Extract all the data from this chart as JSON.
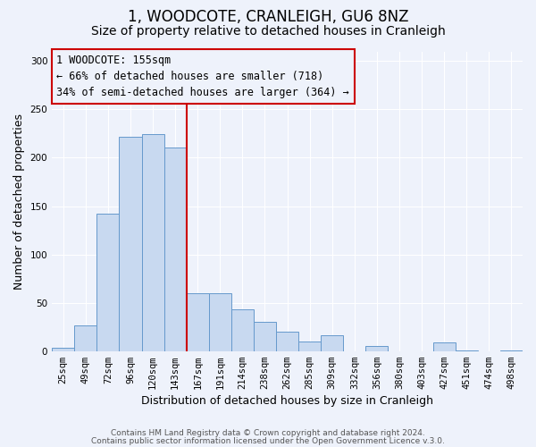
{
  "title": "1, WOODCOTE, CRANLEIGH, GU6 8NZ",
  "subtitle": "Size of property relative to detached houses in Cranleigh",
  "xlabel": "Distribution of detached houses by size in Cranleigh",
  "ylabel": "Number of detached properties",
  "categories": [
    "25sqm",
    "49sqm",
    "72sqm",
    "96sqm",
    "120sqm",
    "143sqm",
    "167sqm",
    "191sqm",
    "214sqm",
    "238sqm",
    "262sqm",
    "285sqm",
    "309sqm",
    "332sqm",
    "356sqm",
    "380sqm",
    "403sqm",
    "427sqm",
    "451sqm",
    "474sqm",
    "498sqm"
  ],
  "values": [
    3,
    27,
    142,
    222,
    224,
    211,
    60,
    60,
    43,
    30,
    20,
    10,
    16,
    0,
    5,
    0,
    0,
    9,
    1,
    0,
    1
  ],
  "bar_color": "#c8d9f0",
  "bar_edge_color": "#6699cc",
  "vline_x": 5.5,
  "vline_color": "#cc0000",
  "annotation_line1": "1 WOODCOTE: 155sqm",
  "annotation_line2": "← 66% of detached houses are smaller (718)",
  "annotation_line3": "34% of semi-detached houses are larger (364) →",
  "annotation_box_color": "#cc0000",
  "ylim": [
    0,
    310
  ],
  "yticks": [
    0,
    50,
    100,
    150,
    200,
    250,
    300
  ],
  "footer1": "Contains HM Land Registry data © Crown copyright and database right 2024.",
  "footer2": "Contains public sector information licensed under the Open Government Licence v.3.0.",
  "bg_color": "#eef2fb",
  "grid_color": "#ffffff",
  "title_fontsize": 12,
  "subtitle_fontsize": 10,
  "axis_label_fontsize": 9,
  "tick_fontsize": 7.5,
  "annotation_fontsize": 8.5,
  "footer_fontsize": 6.5
}
